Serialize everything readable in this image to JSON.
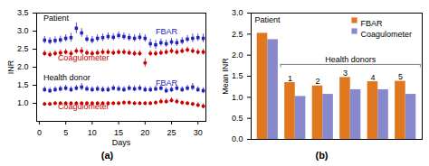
{
  "chart_data": [
    {
      "type": "scatter",
      "xlabel": "Days",
      "ylabel": "INR",
      "xlim": [
        -0.5,
        31.5
      ],
      "xticks": [
        0,
        5,
        10,
        15,
        20,
        25,
        30
      ],
      "ylim": [
        0.5,
        3.5
      ],
      "yticks": [
        {
          "value": 1.0,
          "label": "1.0"
        },
        1.5,
        {
          "value": 2.0,
          "label": "2.0"
        },
        2.5,
        {
          "value": 3.0,
          "label": "3.0"
        },
        3.5
      ],
      "series": [
        {
          "color": "#2222BB",
          "marker": "square",
          "x": [
            1,
            2,
            3,
            4,
            5,
            6,
            7,
            8,
            9,
            10,
            11,
            12,
            13,
            14,
            15,
            16,
            17,
            18,
            19,
            20,
            21,
            22,
            23,
            24,
            25,
            26,
            27,
            28,
            29,
            30,
            31
          ],
          "values": [
            2.75,
            2.72,
            2.74,
            2.76,
            2.8,
            2.82,
            3.08,
            2.95,
            2.78,
            2.75,
            2.8,
            2.82,
            2.85,
            2.83,
            2.88,
            2.85,
            2.82,
            2.8,
            2.83,
            2.8,
            2.65,
            2.62,
            2.68,
            2.65,
            2.7,
            2.68,
            2.72,
            2.78,
            2.8,
            2.82,
            2.8
          ],
          "errors": [
            0.1,
            0.1,
            0.1,
            0.1,
            0.1,
            0.12,
            0.15,
            0.12,
            0.1,
            0.1,
            0.1,
            0.1,
            0.1,
            0.1,
            0.1,
            0.1,
            0.1,
            0.1,
            0.1,
            0.1,
            0.12,
            0.12,
            0.1,
            0.1,
            0.1,
            0.1,
            0.1,
            0.1,
            0.12,
            0.1,
            0.12
          ]
        },
        {
          "color": "#CC0000",
          "marker": "circle",
          "x": [
            1,
            2,
            3,
            4,
            5,
            6,
            7,
            8,
            9,
            10,
            11,
            12,
            13,
            14,
            15,
            16,
            17,
            18,
            19,
            20,
            21,
            22,
            23,
            24,
            25,
            26,
            27,
            28,
            29,
            30,
            31
          ],
          "values": [
            2.38,
            2.35,
            2.38,
            2.4,
            2.42,
            2.38,
            2.45,
            2.45,
            2.4,
            2.38,
            2.4,
            2.42,
            2.42,
            2.4,
            2.42,
            2.42,
            2.4,
            2.38,
            2.38,
            2.12,
            2.38,
            2.38,
            2.4,
            2.42,
            2.45,
            2.42,
            2.45,
            2.48,
            2.45,
            2.42,
            2.42
          ],
          "errors": [
            0.08,
            0.08,
            0.08,
            0.08,
            0.08,
            0.08,
            0.08,
            0.1,
            0.08,
            0.08,
            0.08,
            0.08,
            0.08,
            0.08,
            0.08,
            0.08,
            0.08,
            0.08,
            0.08,
            0.12,
            0.08,
            0.08,
            0.08,
            0.08,
            0.08,
            0.08,
            0.08,
            0.08,
            0.08,
            0.08,
            0.08
          ]
        },
        {
          "color": "#2222BB",
          "marker": "square",
          "x": [
            1,
            2,
            3,
            4,
            5,
            6,
            7,
            8,
            9,
            10,
            11,
            12,
            13,
            14,
            15,
            16,
            17,
            18,
            19,
            20,
            21,
            22,
            23,
            24,
            25,
            26,
            27,
            28,
            29,
            30,
            31
          ],
          "values": [
            1.38,
            1.35,
            1.38,
            1.4,
            1.42,
            1.38,
            1.42,
            1.45,
            1.4,
            1.38,
            1.4,
            1.38,
            1.38,
            1.42,
            1.4,
            1.38,
            1.42,
            1.4,
            1.42,
            1.38,
            1.38,
            1.4,
            1.42,
            1.35,
            1.38,
            1.42,
            1.38,
            1.42,
            1.45,
            1.38,
            1.35
          ],
          "errors": [
            0.08,
            0.08,
            0.08,
            0.08,
            0.08,
            0.08,
            0.08,
            0.1,
            0.08,
            0.08,
            0.08,
            0.08,
            0.08,
            0.08,
            0.08,
            0.08,
            0.08,
            0.08,
            0.08,
            0.08,
            0.08,
            0.08,
            0.08,
            0.08,
            0.08,
            0.08,
            0.08,
            0.08,
            0.1,
            0.08,
            0.08
          ]
        },
        {
          "color": "#CC0000",
          "marker": "circle",
          "x": [
            1,
            2,
            3,
            4,
            5,
            6,
            7,
            8,
            9,
            10,
            11,
            12,
            13,
            14,
            15,
            16,
            17,
            18,
            19,
            20,
            21,
            22,
            23,
            24,
            25,
            26,
            27,
            28,
            29,
            30,
            31
          ],
          "values": [
            0.98,
            0.98,
            1.0,
            1.0,
            1.0,
            1.0,
            1.0,
            1.0,
            1.0,
            1.0,
            1.0,
            1.0,
            1.0,
            1.0,
            1.0,
            1.02,
            1.02,
            1.0,
            1.0,
            1.0,
            1.0,
            1.02,
            1.05,
            1.05,
            1.08,
            1.05,
            1.02,
            1.0,
            0.98,
            0.95,
            0.92
          ],
          "errors": [
            0.05,
            0.05,
            0.05,
            0.05,
            0.05,
            0.05,
            0.05,
            0.05,
            0.05,
            0.05,
            0.05,
            0.05,
            0.05,
            0.05,
            0.05,
            0.05,
            0.05,
            0.05,
            0.05,
            0.05,
            0.05,
            0.05,
            0.07,
            0.07,
            0.07,
            0.07,
            0.05,
            0.05,
            0.05,
            0.07,
            0.07
          ]
        }
      ],
      "annotations": [
        {
          "text": "Patient",
          "x": 0.8,
          "y": 3.3
        },
        {
          "text": "FBAR",
          "x": 22.0,
          "y": 2.92,
          "color": "#2222BB"
        },
        {
          "text": "Coagulometer",
          "x": 3.5,
          "y": 2.2,
          "color": "#CC0000"
        },
        {
          "text": "Health donor",
          "x": 0.8,
          "y": 1.65
        },
        {
          "text": "FBAR",
          "x": 22.0,
          "y": 1.5,
          "color": "#2222BB"
        },
        {
          "text": "Coagulometer",
          "x": 3.5,
          "y": 0.83,
          "color": "#CC0000"
        }
      ],
      "caption": "(a)"
    },
    {
      "type": "bar",
      "ylabel": "Mean INR",
      "categories": [
        null,
        null,
        null,
        null,
        null,
        null
      ],
      "series": [
        {
          "name": "FBAR",
          "color": "#E07820",
          "values": [
            2.52,
            1.35,
            1.27,
            1.47,
            1.37,
            1.38
          ],
          "labels": [
            null,
            "1",
            "2",
            "3",
            "4",
            "5"
          ]
        },
        {
          "name": "Coagulometer",
          "color": "#8888CC",
          "values": [
            2.37,
            1.02,
            1.07,
            1.18,
            1.18,
            1.07
          ]
        }
      ],
      "ylim": [
        0.0,
        3.0
      ],
      "yticks": [
        {
          "value": 0.0,
          "label": "0.0"
        },
        0.5,
        {
          "value": 1.0,
          "label": "1.0"
        },
        1.5,
        {
          "value": 2.0,
          "label": "2.0"
        },
        2.5,
        {
          "value": 3.0,
          "label": "3.0"
        }
      ],
      "tick_labels": "y",
      "legend": "upper right",
      "annotations": [
        {
          "text": "Patient"
        },
        {
          "text": "Health donors",
          "from": 1,
          "to": 5,
          "y": 1.78
        }
      ],
      "caption": "(b)"
    }
  ]
}
